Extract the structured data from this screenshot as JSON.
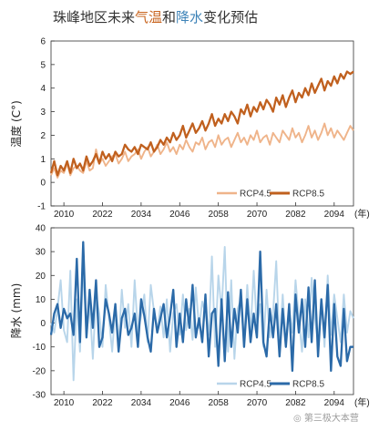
{
  "title": {
    "prefix": "珠峰地区未来",
    "temp_word": "气温",
    "middle": "和",
    "prec_word": "降水",
    "suffix": "变化预估"
  },
  "colors": {
    "rcp45_temp": "#efb48a",
    "rcp85_temp": "#c0601e",
    "rcp45_prec": "#b8d5ea",
    "rcp85_prec": "#2b6aa8",
    "accent_temp": "#c8641e",
    "accent_prec": "#3f84b8"
  },
  "watermark": "第三极大本营",
  "chart_data": [
    {
      "type": "line",
      "ylabel": "温度 (C°)",
      "xlabel": "(年)",
      "xlim": [
        2006,
        2100
      ],
      "ylim": [
        -1,
        6
      ],
      "yticks": [
        -1,
        0,
        1,
        2,
        3,
        4,
        5,
        6
      ],
      "xticks": [
        2010,
        2022,
        2034,
        2046,
        2058,
        2070,
        2082,
        2094
      ],
      "grid": false,
      "legend": "bottom-right",
      "x_start": 2006,
      "series": [
        {
          "name": "RCP4.5",
          "values": [
            0.3,
            0.6,
            0.2,
            0.5,
            0.4,
            0.8,
            0.3,
            0.6,
            0.7,
            0.5,
            0.4,
            0.9,
            0.5,
            0.6,
            1.4,
            0.8,
            1.0,
            0.7,
            0.9,
            1.1,
            1.2,
            0.8,
            1.0,
            1.3,
            0.9,
            1.1,
            1.2,
            1.4,
            1.0,
            1.3,
            1.5,
            1.1,
            1.3,
            1.6,
            1.2,
            1.4,
            1.7,
            1.3,
            1.5,
            1.2,
            1.6,
            1.4,
            1.8,
            1.5,
            1.3,
            1.7,
            1.6,
            1.9,
            1.4,
            1.7,
            1.8,
            1.5,
            2.0,
            1.6,
            1.8,
            1.9,
            1.5,
            1.8,
            2.1,
            1.7,
            1.9,
            1.6,
            2.0,
            1.8,
            2.2,
            1.7,
            1.9,
            2.0,
            1.6,
            2.1,
            1.9,
            1.7,
            2.2,
            2.0,
            1.8,
            2.3,
            1.9,
            2.1,
            1.7,
            2.0,
            2.4,
            1.9,
            2.2,
            1.8,
            2.1,
            2.5,
            2.0,
            2.3,
            1.9,
            2.2,
            2.0,
            1.8,
            2.1,
            2.4,
            2.2
          ]
        },
        {
          "name": "RCP8.5",
          "values": [
            0.4,
            0.9,
            0.3,
            0.7,
            0.5,
            0.9,
            0.4,
            1.0,
            0.6,
            0.8,
            0.5,
            1.1,
            0.7,
            0.9,
            1.2,
            0.8,
            1.3,
            1.0,
            1.2,
            0.9,
            1.3,
            1.1,
            1.2,
            1.6,
            1.4,
            1.3,
            1.5,
            1.2,
            1.6,
            1.5,
            1.4,
            1.7,
            1.3,
            1.5,
            1.8,
            1.6,
            1.9,
            1.7,
            2.1,
            1.8,
            2.0,
            2.4,
            1.9,
            2.2,
            2.5,
            2.1,
            2.3,
            2.6,
            2.2,
            2.5,
            2.9,
            2.4,
            2.7,
            2.5,
            2.9,
            2.6,
            3.0,
            2.8,
            2.5,
            3.1,
            2.9,
            3.3,
            2.8,
            3.2,
            3.0,
            3.4,
            3.1,
            3.5,
            3.3,
            3.0,
            3.6,
            3.3,
            3.7,
            3.2,
            3.6,
            3.9,
            3.4,
            3.8,
            3.6,
            4.0,
            3.7,
            4.2,
            3.8,
            4.1,
            4.4,
            3.9,
            4.3,
            4.1,
            4.5,
            4.2,
            4.6,
            4.4,
            4.7,
            4.6,
            4.7
          ]
        }
      ]
    },
    {
      "type": "line",
      "ylabel": "降水 (mm)",
      "xlabel": "(年)",
      "xlim": [
        2006,
        2100
      ],
      "ylim": [
        -30,
        40
      ],
      "yticks": [
        -30,
        -20,
        -10,
        0,
        10,
        20,
        30,
        40
      ],
      "xticks": [
        2010,
        2022,
        2034,
        2046,
        2058,
        2070,
        2082,
        2094
      ],
      "grid": false,
      "legend": "bottom-right",
      "x_start": 2006,
      "series": [
        {
          "name": "RCP4.5",
          "values": [
            0,
            -4,
            6,
            18,
            -3,
            -8,
            22,
            -24,
            10,
            -12,
            24,
            -5,
            8,
            -15,
            12,
            4,
            -10,
            16,
            2,
            -12,
            6,
            -9,
            14,
            -2,
            8,
            -10,
            18,
            -4,
            3,
            12,
            -8,
            16,
            5,
            -3,
            7,
            -6,
            10,
            -12,
            4,
            8,
            -5,
            12,
            -3,
            6,
            -7,
            15,
            -2,
            9,
            4,
            -5,
            28,
            -10,
            20,
            5,
            32,
            -12,
            18,
            -15,
            6,
            10,
            -8,
            16,
            -4,
            22,
            -2,
            8,
            -10,
            14,
            -6,
            4,
            26,
            -10,
            12,
            -8,
            6,
            -4,
            18,
            2,
            -12,
            10,
            -6,
            19,
            2,
            -8,
            10,
            -10,
            20,
            -5,
            12,
            2,
            -8,
            12,
            -4,
            5,
            2
          ]
        },
        {
          "name": "RCP8.5",
          "values": [
            -5,
            4,
            8,
            -2,
            6,
            2,
            4,
            -5,
            27,
            -8,
            34,
            -6,
            14,
            -2,
            18,
            -10,
            -6,
            10,
            4,
            -4,
            8,
            -12,
            2,
            6,
            -5,
            -2,
            4,
            -10,
            10,
            3,
            -6,
            -12,
            6,
            -4,
            2,
            8,
            -6,
            3,
            14,
            -10,
            4,
            -8,
            10,
            -2,
            16,
            -6,
            2,
            -8,
            12,
            -14,
            4,
            6,
            -18,
            10,
            -16,
            13,
            -10,
            6,
            -4,
            14,
            -10,
            10,
            -8,
            4,
            -6,
            30,
            -8,
            -14,
            6,
            -6,
            8,
            -14,
            6,
            -10,
            8,
            -20,
            12,
            -4,
            10,
            -10,
            15,
            -8,
            18,
            -14,
            10,
            -6,
            16,
            -20,
            8,
            -14,
            -18,
            6,
            -16,
            -10,
            -10
          ]
        }
      ]
    }
  ]
}
